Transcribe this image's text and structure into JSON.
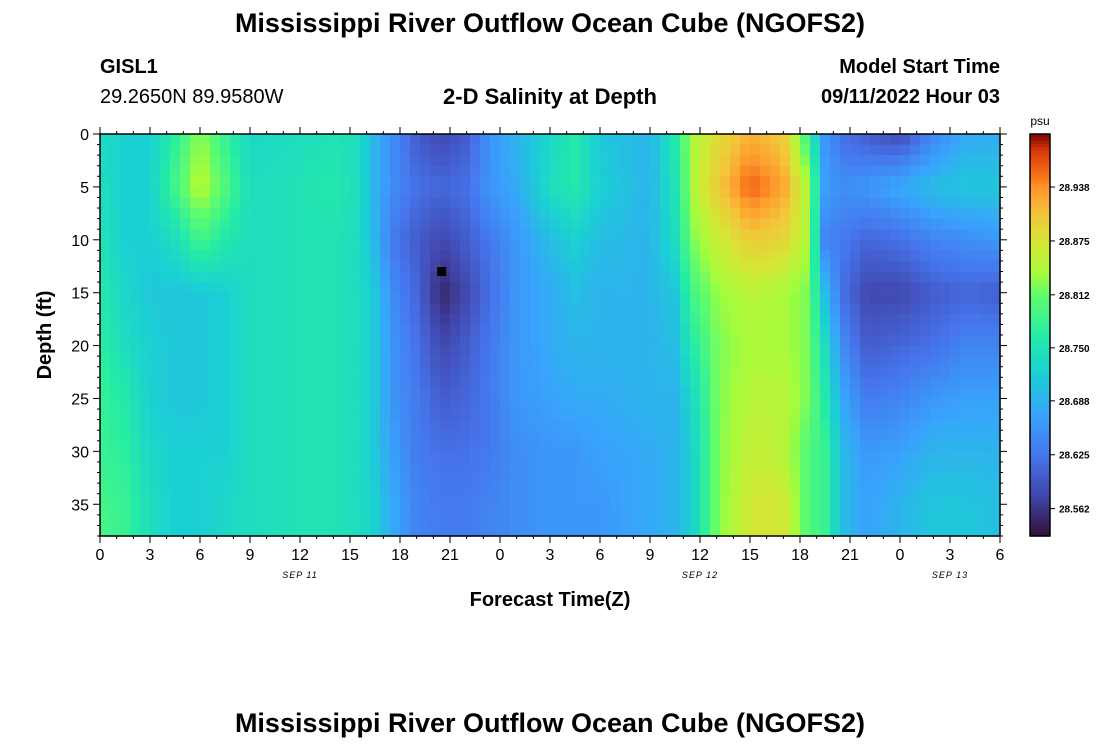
{
  "page": {
    "title": "Mississippi River Outflow Ocean Cube (NGOFS2)",
    "bottom_title": "Mississippi River Outflow Ocean Cube (NGOFS2)",
    "station_id": "GISL1",
    "station_coords": "29.2650N  89.9580W",
    "subtitle": "2-D Salinity at Depth",
    "model_start_label": "Model Start Time",
    "model_start_value": "09/11/2022 Hour 03"
  },
  "chart_data": {
    "type": "heatmap",
    "title": "2-D Salinity at Depth",
    "xlabel": "Forecast Time(Z)",
    "ylabel": "Depth (ft)",
    "x_hours_from_sep11_00z": [
      0,
      54
    ],
    "y_depth_ft": [
      0,
      38
    ],
    "y_reversed": true,
    "x_ticks": [
      "0",
      "3",
      "6",
      "9",
      "12",
      "15",
      "18",
      "21",
      "0",
      "3",
      "6",
      "9",
      "12",
      "15",
      "18",
      "21",
      "0",
      "3",
      "6"
    ],
    "y_ticks": [
      "0",
      "5",
      "10",
      "15",
      "20",
      "25",
      "30",
      "35"
    ],
    "date_labels": [
      {
        "text": "SEP 11",
        "hour": 12
      },
      {
        "text": "SEP 12",
        "hour": 36
      },
      {
        "text": "SEP 13",
        "hour": 51
      }
    ],
    "colorbar": {
      "unit": "psu",
      "range": [
        28.53,
        29.0
      ],
      "ticks": [
        "28.938",
        "28.875",
        "28.812",
        "28.750",
        "28.688",
        "28.625",
        "28.562"
      ]
    },
    "marker": {
      "hour": 20.5,
      "depth_ft": 13
    },
    "salinity_profiles": [
      {
        "hour": 0,
        "depths": [
          0,
          5,
          10,
          15,
          20,
          25,
          30,
          35,
          38
        ],
        "values": [
          28.74,
          28.74,
          28.75,
          28.76,
          28.77,
          28.78,
          28.78,
          28.79,
          28.79
        ]
      },
      {
        "hour": 1.5,
        "depths": [
          0,
          5,
          10,
          15,
          20,
          25,
          30,
          35,
          38
        ],
        "values": [
          28.72,
          28.72,
          28.72,
          28.73,
          28.74,
          28.76,
          28.77,
          28.78,
          28.78
        ]
      },
      {
        "hour": 3,
        "depths": [
          0,
          5,
          10,
          15,
          20,
          25,
          30,
          35,
          38
        ],
        "values": [
          28.72,
          28.72,
          28.72,
          28.71,
          28.72,
          28.72,
          28.73,
          28.74,
          28.74
        ]
      },
      {
        "hour": 4.5,
        "depths": [
          0,
          5,
          10,
          15,
          20,
          25,
          30,
          35,
          38
        ],
        "values": [
          28.77,
          28.79,
          28.74,
          28.71,
          28.71,
          28.71,
          28.72,
          28.72,
          28.72
        ]
      },
      {
        "hour": 6,
        "depths": [
          0,
          5,
          10,
          15,
          20,
          25,
          30,
          35,
          38
        ],
        "values": [
          28.83,
          28.85,
          28.79,
          28.71,
          28.71,
          28.71,
          28.72,
          28.72,
          28.72
        ]
      },
      {
        "hour": 7.5,
        "depths": [
          0,
          5,
          10,
          15,
          20,
          25,
          30,
          35,
          38
        ],
        "values": [
          28.78,
          28.8,
          28.76,
          28.72,
          28.72,
          28.72,
          28.72,
          28.73,
          28.73
        ]
      },
      {
        "hour": 9,
        "depths": [
          0,
          5,
          10,
          15,
          20,
          25,
          30,
          35,
          38
        ],
        "values": [
          28.73,
          28.74,
          28.74,
          28.74,
          28.74,
          28.74,
          28.74,
          28.74,
          28.74
        ]
      },
      {
        "hour": 12,
        "depths": [
          0,
          5,
          10,
          15,
          20,
          25,
          30,
          35,
          38
        ],
        "values": [
          28.74,
          28.75,
          28.75,
          28.75,
          28.75,
          28.75,
          28.75,
          28.75,
          28.75
        ]
      },
      {
        "hour": 14,
        "depths": [
          0,
          5,
          10,
          15,
          20,
          25,
          30,
          35,
          38
        ],
        "values": [
          28.75,
          28.76,
          28.75,
          28.75,
          28.75,
          28.75,
          28.75,
          28.75,
          28.75
        ]
      },
      {
        "hour": 15.5,
        "depths": [
          0,
          5,
          10,
          15,
          20,
          25,
          30,
          35,
          38
        ],
        "values": [
          28.74,
          28.74,
          28.74,
          28.74,
          28.74,
          28.74,
          28.74,
          28.74,
          28.74
        ]
      },
      {
        "hour": 16.5,
        "depths": [
          0,
          5,
          10,
          15,
          20,
          25,
          30,
          35,
          38
        ],
        "values": [
          28.69,
          28.69,
          28.69,
          28.71,
          28.71,
          28.71,
          28.71,
          28.72,
          28.72
        ]
      },
      {
        "hour": 17.5,
        "depths": [
          0,
          5,
          10,
          15,
          20,
          25,
          30,
          35,
          38
        ],
        "values": [
          28.65,
          28.65,
          28.63,
          28.65,
          28.66,
          28.66,
          28.67,
          28.68,
          28.68
        ]
      },
      {
        "hour": 19,
        "depths": [
          0,
          5,
          10,
          15,
          20,
          25,
          30,
          35,
          38
        ],
        "values": [
          28.6,
          28.62,
          28.6,
          28.61,
          28.62,
          28.63,
          28.63,
          28.64,
          28.64
        ]
      },
      {
        "hour": 20.5,
        "depths": [
          0,
          5,
          10,
          15,
          20,
          25,
          30,
          35,
          38
        ],
        "values": [
          28.58,
          28.61,
          28.58,
          28.55,
          28.58,
          28.6,
          28.62,
          28.63,
          28.63
        ]
      },
      {
        "hour": 22,
        "depths": [
          0,
          5,
          10,
          15,
          20,
          25,
          30,
          35,
          38
        ],
        "values": [
          28.6,
          28.62,
          28.6,
          28.58,
          28.6,
          28.61,
          28.62,
          28.63,
          28.63
        ]
      },
      {
        "hour": 23.5,
        "depths": [
          0,
          5,
          10,
          15,
          20,
          25,
          30,
          35,
          38
        ],
        "values": [
          28.66,
          28.66,
          28.63,
          28.62,
          28.63,
          28.63,
          28.63,
          28.64,
          28.64
        ]
      },
      {
        "hour": 25,
        "depths": [
          0,
          5,
          10,
          15,
          20,
          25,
          30,
          35,
          38
        ],
        "values": [
          28.69,
          28.68,
          28.66,
          28.66,
          28.66,
          28.66,
          28.65,
          28.65,
          28.65
        ]
      },
      {
        "hour": 27,
        "depths": [
          0,
          5,
          10,
          15,
          20,
          25,
          30,
          35,
          38
        ],
        "values": [
          28.73,
          28.74,
          28.7,
          28.68,
          28.68,
          28.67,
          28.66,
          28.66,
          28.66
        ]
      },
      {
        "hour": 28.5,
        "depths": [
          0,
          5,
          10,
          15,
          20,
          25,
          30,
          35,
          38
        ],
        "values": [
          28.76,
          28.76,
          28.72,
          28.7,
          28.69,
          28.68,
          28.66,
          28.66,
          28.66
        ]
      },
      {
        "hour": 30,
        "depths": [
          0,
          5,
          10,
          15,
          20,
          25,
          30,
          35,
          38
        ],
        "values": [
          28.71,
          28.72,
          28.7,
          28.69,
          28.69,
          28.68,
          28.67,
          28.66,
          28.66
        ]
      },
      {
        "hour": 33,
        "depths": [
          0,
          5,
          10,
          15,
          20,
          25,
          30,
          35,
          38
        ],
        "values": [
          28.69,
          28.69,
          28.69,
          28.69,
          28.69,
          28.69,
          28.68,
          28.68,
          28.68
        ]
      },
      {
        "hour": 34.5,
        "depths": [
          0,
          5,
          10,
          15,
          20,
          25,
          30,
          35,
          38
        ],
        "values": [
          28.76,
          28.75,
          28.74,
          28.71,
          28.7,
          28.69,
          28.69,
          28.69,
          28.69
        ]
      },
      {
        "hour": 35.5,
        "depths": [
          0,
          5,
          10,
          15,
          20,
          25,
          30,
          35,
          38
        ],
        "values": [
          28.84,
          28.84,
          28.82,
          28.79,
          28.76,
          28.73,
          28.72,
          28.72,
          28.72
        ]
      },
      {
        "hour": 37,
        "depths": [
          0,
          5,
          10,
          15,
          20,
          25,
          30,
          35,
          38
        ],
        "values": [
          28.88,
          28.9,
          28.86,
          28.83,
          28.82,
          28.82,
          28.82,
          28.82,
          28.82
        ]
      },
      {
        "hour": 39,
        "depths": [
          0,
          5,
          10,
          15,
          20,
          25,
          30,
          35,
          38
        ],
        "values": [
          28.92,
          28.96,
          28.9,
          28.85,
          28.84,
          28.85,
          28.86,
          28.87,
          28.87
        ]
      },
      {
        "hour": 41,
        "depths": [
          0,
          5,
          10,
          15,
          20,
          25,
          30,
          35,
          38
        ],
        "values": [
          28.9,
          28.93,
          28.89,
          28.84,
          28.84,
          28.85,
          28.85,
          28.87,
          28.87
        ]
      },
      {
        "hour": 42.5,
        "depths": [
          0,
          5,
          10,
          15,
          20,
          25,
          30,
          35,
          38
        ],
        "values": [
          28.78,
          28.84,
          28.84,
          28.82,
          28.82,
          28.82,
          28.8,
          28.8,
          28.8
        ]
      },
      {
        "hour": 43.5,
        "depths": [
          0,
          5,
          10,
          15,
          20,
          25,
          30,
          35,
          38
        ],
        "values": [
          28.66,
          28.67,
          28.64,
          28.7,
          28.74,
          28.76,
          28.78,
          28.78,
          28.78
        ]
      },
      {
        "hour": 44.5,
        "depths": [
          0,
          5,
          10,
          15,
          20,
          25,
          30,
          35,
          38
        ],
        "values": [
          28.62,
          28.65,
          28.63,
          28.62,
          28.65,
          28.68,
          28.7,
          28.7,
          28.7
        ]
      },
      {
        "hour": 46,
        "depths": [
          0,
          5,
          10,
          15,
          20,
          25,
          30,
          35,
          38
        ],
        "values": [
          28.6,
          28.66,
          28.61,
          28.58,
          28.6,
          28.63,
          28.66,
          28.67,
          28.67
        ]
      },
      {
        "hour": 48,
        "depths": [
          0,
          5,
          10,
          15,
          20,
          25,
          30,
          35,
          38
        ],
        "values": [
          28.58,
          28.68,
          28.62,
          28.58,
          28.61,
          28.64,
          28.67,
          28.69,
          28.69
        ]
      },
      {
        "hour": 50,
        "depths": [
          0,
          5,
          10,
          15,
          20,
          25,
          30,
          35,
          38
        ],
        "values": [
          28.64,
          28.7,
          28.64,
          28.6,
          28.62,
          28.66,
          28.69,
          28.71,
          28.71
        ]
      },
      {
        "hour": 52,
        "depths": [
          0,
          5,
          10,
          15,
          20,
          25,
          30,
          35,
          38
        ],
        "values": [
          28.68,
          28.71,
          28.65,
          28.61,
          28.64,
          28.67,
          28.69,
          28.71,
          28.71
        ]
      },
      {
        "hour": 54,
        "depths": [
          0,
          5,
          10,
          15,
          20,
          25,
          30,
          35,
          38
        ],
        "values": [
          28.68,
          28.71,
          28.66,
          28.6,
          28.64,
          28.67,
          28.69,
          28.7,
          28.7
        ]
      }
    ]
  }
}
